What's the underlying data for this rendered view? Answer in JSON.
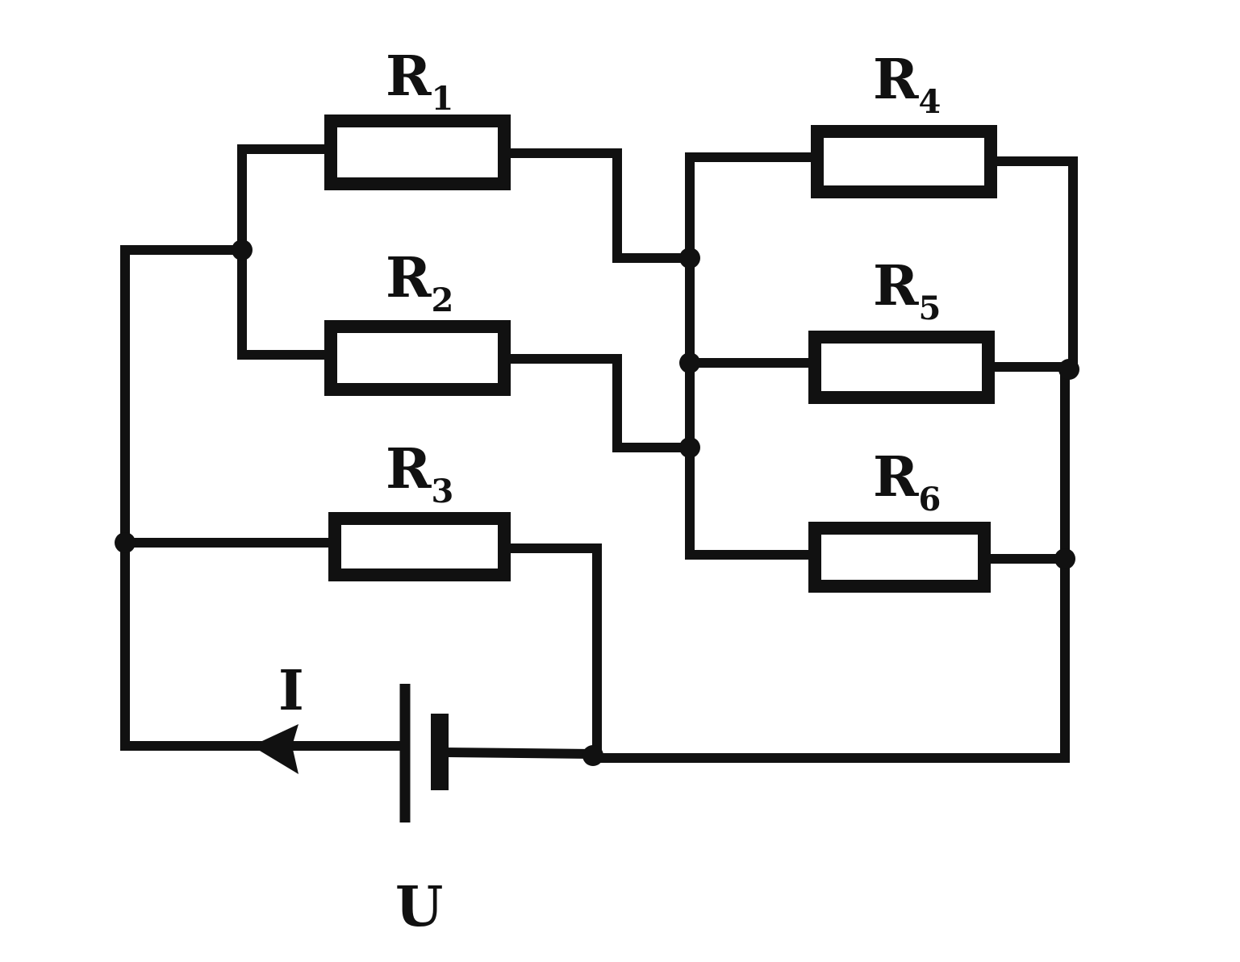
{
  "resistors": [
    {
      "id": "R1",
      "letter": "R",
      "index": "1"
    },
    {
      "id": "R2",
      "letter": "R",
      "index": "2"
    },
    {
      "id": "R3",
      "letter": "R",
      "index": "3"
    },
    {
      "id": "R4",
      "letter": "R",
      "index": "4"
    },
    {
      "id": "R5",
      "letter": "R",
      "index": "5"
    },
    {
      "id": "R6",
      "letter": "R",
      "index": "6"
    }
  ],
  "current_label": "I",
  "voltage_label": "U",
  "colors": {
    "ink": "#111111",
    "background": "#ffffff"
  }
}
